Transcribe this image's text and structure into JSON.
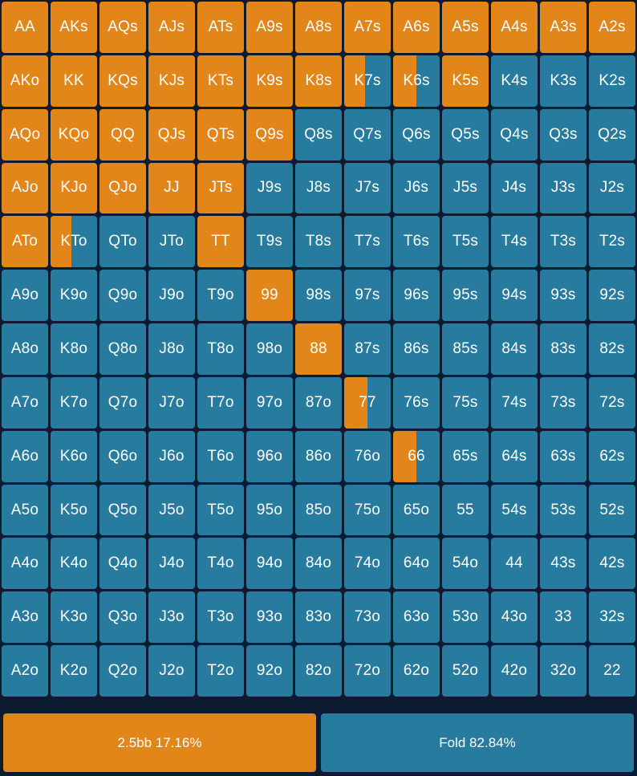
{
  "colors": {
    "raise": "#e3861a",
    "fold": "#277b9f",
    "background": "#0d1b30"
  },
  "grid": {
    "rows": [
      [
        "AA",
        "AKs",
        "AQs",
        "AJs",
        "ATs",
        "A9s",
        "A8s",
        "A7s",
        "A6s",
        "A5s",
        "A4s",
        "A3s",
        "A2s"
      ],
      [
        "AKo",
        "KK",
        "KQs",
        "KJs",
        "KTs",
        "K9s",
        "K8s",
        "K7s",
        "K6s",
        "K5s",
        "K4s",
        "K3s",
        "K2s"
      ],
      [
        "AQo",
        "KQo",
        "QQ",
        "QJs",
        "QTs",
        "Q9s",
        "Q8s",
        "Q7s",
        "Q6s",
        "Q5s",
        "Q4s",
        "Q3s",
        "Q2s"
      ],
      [
        "AJo",
        "KJo",
        "QJo",
        "JJ",
        "JTs",
        "J9s",
        "J8s",
        "J7s",
        "J6s",
        "J5s",
        "J4s",
        "J3s",
        "J2s"
      ],
      [
        "ATo",
        "KTo",
        "QTo",
        "JTo",
        "TT",
        "T9s",
        "T8s",
        "T7s",
        "T6s",
        "T5s",
        "T4s",
        "T3s",
        "T2s"
      ],
      [
        "A9o",
        "K9o",
        "Q9o",
        "J9o",
        "T9o",
        "99",
        "98s",
        "97s",
        "96s",
        "95s",
        "94s",
        "93s",
        "92s"
      ],
      [
        "A8o",
        "K8o",
        "Q8o",
        "J8o",
        "T8o",
        "98o",
        "88",
        "87s",
        "86s",
        "85s",
        "84s",
        "83s",
        "82s"
      ],
      [
        "A7o",
        "K7o",
        "Q7o",
        "J7o",
        "T7o",
        "97o",
        "87o",
        "77",
        "76s",
        "75s",
        "74s",
        "73s",
        "72s"
      ],
      [
        "A6o",
        "K6o",
        "Q6o",
        "J6o",
        "T6o",
        "96o",
        "86o",
        "76o",
        "66",
        "65s",
        "64s",
        "63s",
        "62s"
      ],
      [
        "A5o",
        "K5o",
        "Q5o",
        "J5o",
        "T5o",
        "95o",
        "85o",
        "75o",
        "65o",
        "55",
        "54s",
        "53s",
        "52s"
      ],
      [
        "A4o",
        "K4o",
        "Q4o",
        "J4o",
        "T4o",
        "94o",
        "84o",
        "74o",
        "64o",
        "54o",
        "44",
        "43s",
        "42s"
      ],
      [
        "A3o",
        "K3o",
        "Q3o",
        "J3o",
        "T3o",
        "93o",
        "83o",
        "73o",
        "63o",
        "53o",
        "43o",
        "33",
        "32s"
      ],
      [
        "A2o",
        "K2o",
        "Q2o",
        "J2o",
        "T2o",
        "92o",
        "82o",
        "72o",
        "62o",
        "52o",
        "42o",
        "32o",
        "22"
      ]
    ],
    "raise_frequency": {
      "AA": 1,
      "AKs": 1,
      "AQs": 1,
      "AJs": 1,
      "ATs": 1,
      "A9s": 1,
      "A8s": 1,
      "A7s": 1,
      "A6s": 1,
      "A5s": 1,
      "A4s": 1,
      "A3s": 1,
      "A2s": 1,
      "AKo": 1,
      "KK": 1,
      "KQs": 1,
      "KJs": 1,
      "KTs": 1,
      "K9s": 1,
      "K8s": 1,
      "K7s": 0.45,
      "K6s": 0.5,
      "K5s": 1,
      "AQo": 1,
      "KQo": 1,
      "QQ": 1,
      "QJs": 1,
      "QTs": 1,
      "Q9s": 1,
      "AJo": 1,
      "KJo": 1,
      "QJo": 1,
      "JJ": 1,
      "JTs": 1,
      "ATo": 1,
      "KTo": 0.45,
      "TT": 1,
      "99": 1,
      "88": 1,
      "77": 0.5,
      "66": 0.5
    }
  },
  "legend": [
    {
      "key": "raise",
      "label": "2.5bb 17.16%",
      "percent": 17.16
    },
    {
      "key": "fold",
      "label": "Fold 82.84%",
      "percent": 82.84
    }
  ]
}
